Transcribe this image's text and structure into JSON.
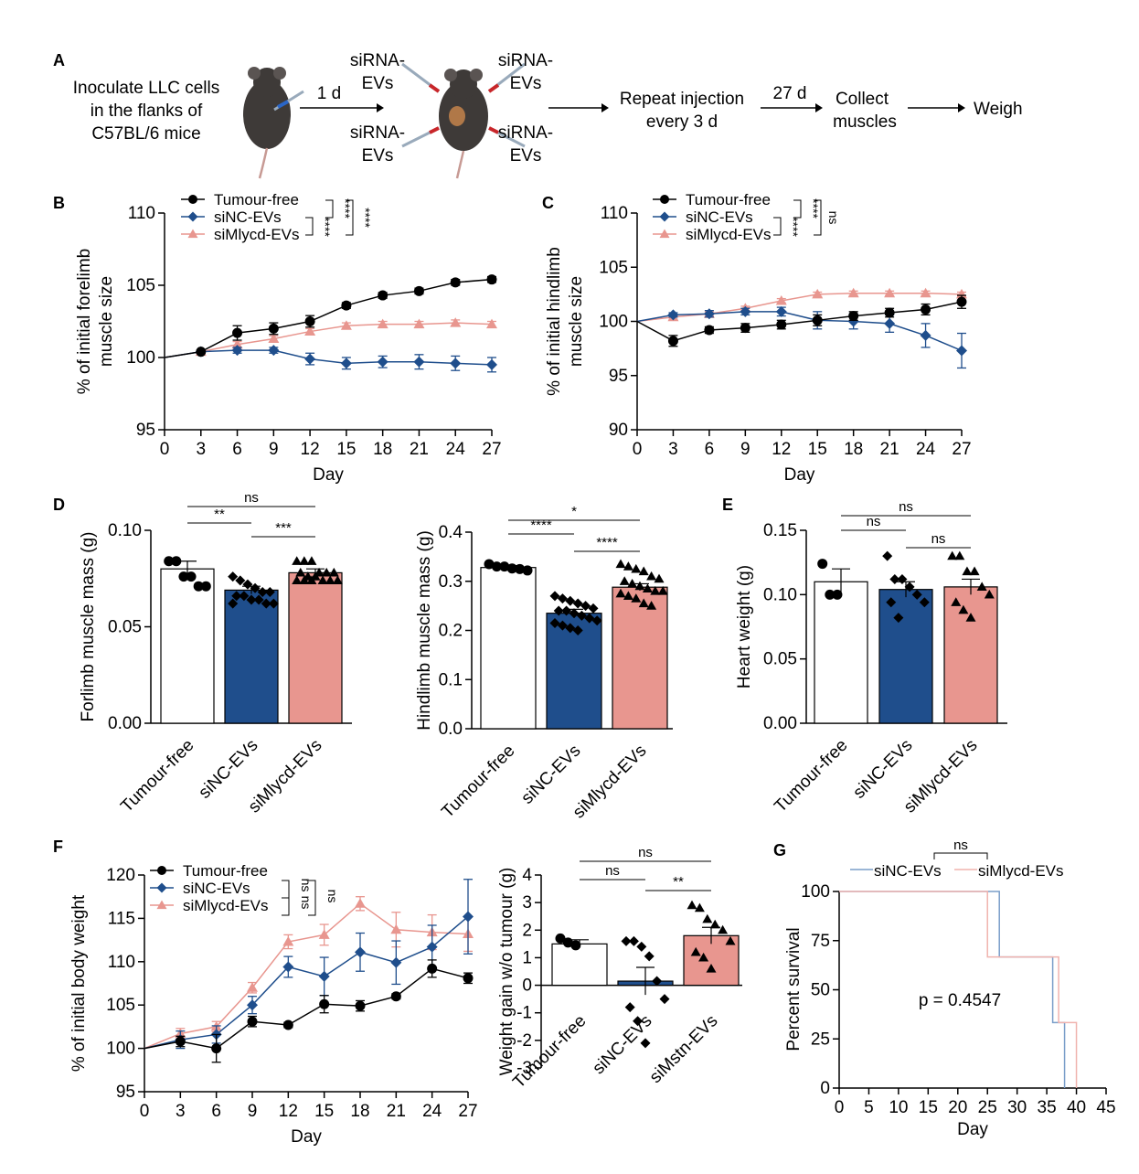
{
  "colors": {
    "tumour_free": "#000000",
    "sinc": "#1f4e8c",
    "simlycd": "#e8968f"
  },
  "panel_a": {
    "label": "A",
    "step1_lines": [
      "Inoculate LLC cells",
      "in the flanks of",
      "C57BL/6 mice"
    ],
    "arrow1_label": "1 d",
    "inj_tl": [
      "siRNA-",
      "EVs"
    ],
    "inj_tr": [
      "siRNA-",
      "EVs"
    ],
    "inj_bl": [
      "siRNA-",
      "EVs"
    ],
    "inj_br": [
      "siRNA-",
      "EVs"
    ],
    "repeat_lines": [
      "Repeat injection",
      "every 3 d"
    ],
    "arrow3_label": "27 d",
    "collect_lines": [
      "Collect",
      "muscles"
    ],
    "weigh": "Weigh"
  },
  "chart_data": [
    {
      "id": "B",
      "type": "line",
      "label": "B",
      "xlabel": "Day",
      "ylabel": [
        "% of initial forelimb",
        "muscle size"
      ],
      "x": [
        0,
        3,
        6,
        9,
        12,
        15,
        18,
        21,
        24,
        27
      ],
      "xticks": [
        0,
        3,
        6,
        9,
        12,
        15,
        18,
        21,
        24,
        27
      ],
      "ylim": [
        95,
        110
      ],
      "yticks": [
        95,
        100,
        105,
        110
      ],
      "series": [
        {
          "name": "Tumour-free",
          "marker": "circle",
          "color": "#000000",
          "values": [
            100,
            100.4,
            101.7,
            102.0,
            102.5,
            103.6,
            104.3,
            104.6,
            105.2,
            105.4
          ],
          "err": [
            0,
            0.1,
            0.5,
            0.4,
            0.4,
            0.2,
            0.2,
            0.2,
            0.2,
            0.2
          ]
        },
        {
          "name": "siNC-EVs",
          "marker": "diamond",
          "color": "#1f4e8c",
          "values": [
            100,
            100.4,
            100.5,
            100.5,
            99.9,
            99.6,
            99.7,
            99.7,
            99.6,
            99.5
          ],
          "err": [
            0,
            0.1,
            0.2,
            0.2,
            0.4,
            0.4,
            0.4,
            0.5,
            0.5,
            0.5
          ]
        },
        {
          "name": "siMlycd-EVs",
          "marker": "triangle",
          "color": "#e8968f",
          "values": [
            100,
            100.4,
            100.9,
            101.3,
            101.8,
            102.2,
            102.3,
            102.3,
            102.4,
            102.3
          ],
          "err": [
            0,
            0.1,
            0.2,
            0.2,
            0.2,
            0.2,
            0.2,
            0.2,
            0.2,
            0.2
          ]
        }
      ],
      "sig": [
        "****",
        "****",
        "****"
      ]
    },
    {
      "id": "C",
      "type": "line",
      "label": "C",
      "xlabel": "Day",
      "ylabel": [
        "% of initial hindlimb",
        "muscle size"
      ],
      "x": [
        0,
        3,
        6,
        9,
        12,
        15,
        18,
        21,
        24,
        27
      ],
      "xticks": [
        0,
        3,
        6,
        9,
        12,
        15,
        18,
        21,
        24,
        27
      ],
      "ylim": [
        90,
        110
      ],
      "yticks": [
        90,
        95,
        100,
        105,
        110
      ],
      "series": [
        {
          "name": "Tumour-free",
          "marker": "circle",
          "color": "#000000",
          "values": [
            100,
            98.2,
            99.2,
            99.4,
            99.7,
            100.1,
            100.5,
            100.8,
            101.1,
            101.8
          ],
          "err": [
            0,
            0.5,
            0.3,
            0.4,
            0.4,
            0.5,
            0.4,
            0.4,
            0.5,
            0.6
          ]
        },
        {
          "name": "siNC-EVs",
          "marker": "diamond",
          "color": "#1f4e8c",
          "values": [
            100,
            100.6,
            100.7,
            100.9,
            100.9,
            100.1,
            100.0,
            99.8,
            98.7,
            97.3
          ],
          "err": [
            0,
            0.2,
            0.3,
            0.3,
            0.4,
            0.8,
            0.7,
            0.8,
            1.1,
            1.6
          ]
        },
        {
          "name": "siMlycd-EVs",
          "marker": "triangle",
          "color": "#e8968f",
          "values": [
            100,
            100.4,
            100.7,
            101.2,
            101.9,
            102.5,
            102.6,
            102.6,
            102.6,
            102.5
          ],
          "err": [
            0,
            0.2,
            0.2,
            0.2,
            0.2,
            0.2,
            0.2,
            0.2,
            0.2,
            0.2
          ]
        }
      ],
      "sig": [
        "****",
        "****",
        "ns"
      ]
    },
    {
      "id": "D1",
      "type": "bar",
      "label": "D",
      "ylabel": "Forlimb muscle mass (g)",
      "categories": [
        "Tumour-free",
        "siNC-EVs",
        "siMlycd-EVs"
      ],
      "values": [
        0.08,
        0.069,
        0.078
      ],
      "err": [
        0.004,
        0.002,
        0.002
      ],
      "ylim": [
        0,
        0.1
      ],
      "yticks": [
        "0.00",
        "0.05",
        "0.10"
      ],
      "points": [
        [
          0.084,
          0.084,
          0.076,
          0.076,
          0.071,
          0.071
        ],
        [
          0.076,
          0.074,
          0.072,
          0.07,
          0.068,
          0.068,
          0.066,
          0.066,
          0.064,
          0.064,
          0.062,
          0.062,
          0.062
        ],
        [
          0.084,
          0.084,
          0.084,
          0.078,
          0.078,
          0.078,
          0.078,
          0.076,
          0.076,
          0.074,
          0.074,
          0.074,
          0.074,
          0.074,
          0.074
        ]
      ],
      "sig": [
        {
          "text": "**"
        },
        {
          "text": "***"
        },
        {
          "text": "ns"
        }
      ]
    },
    {
      "id": "D2",
      "type": "bar",
      "ylabel": "Hindlimb muscle mass (g)",
      "categories": [
        "Tumour-free",
        "siNC-EVs",
        "siMlycd-EVs"
      ],
      "values": [
        0.328,
        0.235,
        0.288
      ],
      "err": [
        0.004,
        0.008,
        0.007
      ],
      "ylim": [
        0,
        0.4
      ],
      "yticks": [
        "0.0",
        "0.1",
        "0.2",
        "0.3",
        "0.4"
      ],
      "points": [
        [
          0.335,
          0.33,
          0.33,
          0.326,
          0.325,
          0.322
        ],
        [
          0.27,
          0.265,
          0.26,
          0.255,
          0.25,
          0.245,
          0.24,
          0.24,
          0.235,
          0.23,
          0.225,
          0.22,
          0.215,
          0.21,
          0.205,
          0.2
        ],
        [
          0.335,
          0.33,
          0.325,
          0.32,
          0.31,
          0.305,
          0.3,
          0.295,
          0.29,
          0.285,
          0.28,
          0.28,
          0.275,
          0.27,
          0.265,
          0.255,
          0.25
        ]
      ],
      "sig": [
        {
          "text": "****"
        },
        {
          "text": "****"
        },
        {
          "text": "*"
        }
      ]
    },
    {
      "id": "E",
      "type": "bar",
      "label": "E",
      "ylabel": "Heart weight (g)",
      "categories": [
        "Tumour-free",
        "siNC-EVs",
        "siMlycd-EVs"
      ],
      "values": [
        0.11,
        0.104,
        0.106
      ],
      "err": [
        0.01,
        0.006,
        0.006
      ],
      "ylim": [
        0,
        0.15
      ],
      "yticks": [
        "0.00",
        "0.05",
        "0.10",
        "0.15"
      ],
      "points": [
        [
          0.124,
          0.1,
          0.1
        ],
        [
          0.13,
          0.112,
          0.112,
          0.106,
          0.1,
          0.094,
          0.094,
          0.082
        ],
        [
          0.13,
          0.13,
          0.118,
          0.118,
          0.106,
          0.1,
          0.094,
          0.088,
          0.082
        ]
      ],
      "sig": [
        {
          "text": "ns"
        },
        {
          "text": "ns"
        },
        {
          "text": "ns"
        }
      ]
    },
    {
      "id": "F1",
      "type": "line",
      "label": "F",
      "xlabel": "Day",
      "ylabel": "% of initial body weight",
      "x": [
        0,
        3,
        6,
        9,
        12,
        15,
        18,
        21,
        24,
        27
      ],
      "xticks": [
        0,
        3,
        6,
        9,
        12,
        15,
        18,
        21,
        24,
        27
      ],
      "ylim": [
        95,
        120
      ],
      "yticks": [
        95,
        100,
        105,
        110,
        115,
        120
      ],
      "series": [
        {
          "name": "Tumour-free",
          "marker": "circle",
          "color": "#000000",
          "values": [
            100,
            100.8,
            100.0,
            103.1,
            102.7,
            105.1,
            104.9,
            106.0,
            109.2,
            108.1
          ],
          "err": [
            0,
            0.6,
            1.6,
            0.6,
            0.3,
            1.0,
            0.6,
            0.3,
            1.0,
            0.6
          ]
        },
        {
          "name": "siNC-EVs",
          "marker": "diamond",
          "color": "#1f4e8c",
          "values": [
            100,
            101.0,
            101.6,
            105.0,
            109.4,
            108.3,
            111.1,
            109.9,
            111.7,
            115.2
          ],
          "err": [
            0,
            1.0,
            1.0,
            1.0,
            1.2,
            2.2,
            2.2,
            2.5,
            2.5,
            4.3
          ]
        },
        {
          "name": "siMlycd-EVs",
          "marker": "triangle",
          "color": "#e8968f",
          "values": [
            100,
            101.7,
            102.5,
            107.0,
            112.3,
            113.1,
            116.7,
            113.7,
            113.4,
            113.2
          ],
          "err": [
            0,
            0.6,
            0.6,
            0.6,
            0.8,
            1.2,
            0.8,
            2.0,
            2.0,
            2.0
          ]
        }
      ],
      "sig": [
        "ns",
        "ns",
        "ns"
      ]
    },
    {
      "id": "F2",
      "type": "bar",
      "ylabel": "Weight gain w/o tumour (g)",
      "categories": [
        "Tumour-free",
        "siNC-EVs",
        "siMstn-EVs"
      ],
      "values": [
        1.5,
        0.15,
        1.8
      ],
      "err": [
        0.15,
        0.5,
        0.3
      ],
      "ylim": [
        -3,
        4
      ],
      "yticks": [
        "-3",
        "-2",
        "-1",
        "0",
        "1",
        "2",
        "3",
        "4"
      ],
      "points": [
        [
          1.7,
          1.55,
          1.45
        ],
        [
          1.6,
          1.6,
          1.4,
          1.05,
          0.15,
          -0.5,
          -0.8,
          -1.3,
          -2.1
        ],
        [
          2.9,
          2.8,
          2.4,
          2.2,
          2.0,
          1.6,
          1.2,
          1.0,
          0.6
        ]
      ],
      "sig": [
        {
          "text": "ns"
        },
        {
          "text": "**"
        },
        {
          "text": "ns"
        }
      ]
    },
    {
      "id": "G",
      "type": "line",
      "label": "G",
      "xlabel": "Day",
      "ylabel": "Percent survival",
      "xlim": [
        0,
        45
      ],
      "xticks": [
        0,
        5,
        10,
        15,
        20,
        25,
        30,
        35,
        40,
        45
      ],
      "ylim": [
        0,
        100
      ],
      "yticks": [
        0,
        25,
        50,
        75,
        100
      ],
      "series": [
        {
          "name": "siNC-EVs",
          "color": "#7a9ec9",
          "steps": [
            [
              0,
              100
            ],
            [
              27,
              100
            ],
            [
              27,
              66.7
            ],
            [
              36,
              66.7
            ],
            [
              36,
              33.3
            ],
            [
              38,
              33.3
            ],
            [
              38,
              0
            ]
          ]
        },
        {
          "name": "siMlycd-EVs",
          "color": "#f0b3ae",
          "steps": [
            [
              0,
              100
            ],
            [
              25,
              100
            ],
            [
              25,
              66.7
            ],
            [
              37,
              66.7
            ],
            [
              37,
              33.3
            ],
            [
              40,
              33.3
            ],
            [
              40,
              0
            ]
          ]
        }
      ],
      "annotation": "p = 0.4547",
      "sig": "ns"
    }
  ]
}
